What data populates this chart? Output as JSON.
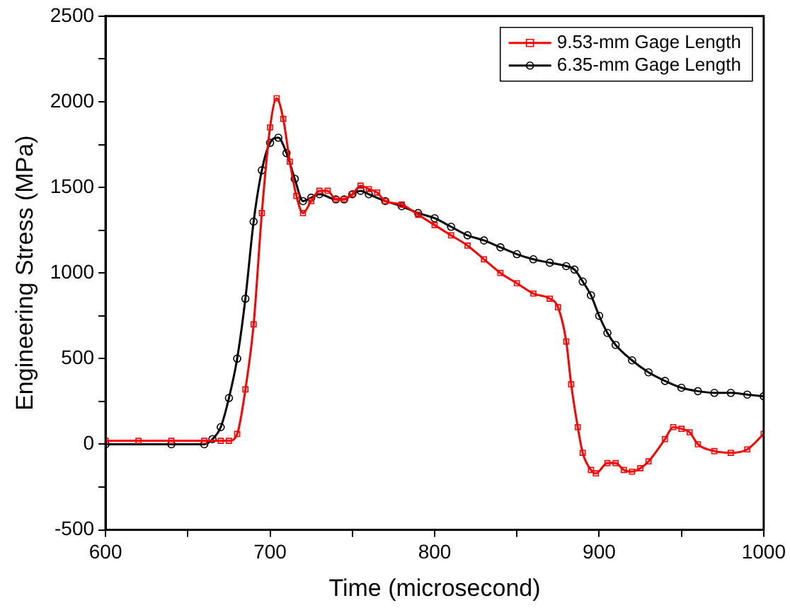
{
  "chart_data": {
    "type": "line",
    "xlabel": "Time (microsecond)",
    "ylabel": "Engineering Stress (MPa)",
    "xlim": [
      600,
      1000
    ],
    "ylim": [
      -500,
      2500
    ],
    "xticks": [
      600,
      {
        "value": 650,
        "label": null
      },
      700,
      {
        "value": 750,
        "label": null
      },
      800,
      {
        "value": 850,
        "label": null
      },
      900,
      {
        "value": 950,
        "label": null
      },
      1000
    ],
    "yticks": [
      -500,
      {
        "value": -250,
        "label": null
      },
      0,
      {
        "value": 250,
        "label": null
      },
      500,
      {
        "value": 750,
        "label": null
      },
      1000,
      {
        "value": 1250,
        "label": null
      },
      1500,
      {
        "value": 1750,
        "label": null
      },
      2000,
      {
        "value": 2250,
        "label": null
      },
      2500
    ],
    "grid": false,
    "legend": "top right",
    "line_style": "solid",
    "series": [
      {
        "name": "9.53-mm Gage Length",
        "color": "#ff0000",
        "marker": "square",
        "x": [
          600,
          620,
          640,
          660,
          670,
          675,
          680,
          685,
          690,
          695,
          700,
          704,
          708,
          712,
          716,
          720,
          725,
          730,
          735,
          740,
          745,
          750,
          755,
          760,
          765,
          770,
          780,
          790,
          800,
          810,
          820,
          830,
          840,
          850,
          860,
          870,
          875,
          880,
          883,
          887,
          890,
          895,
          898,
          905,
          910,
          915,
          920,
          925,
          930,
          940,
          945,
          950,
          955,
          960,
          970,
          980,
          990,
          1000
        ],
        "values": [
          20,
          20,
          20,
          20,
          20,
          20,
          60,
          320,
          700,
          1350,
          1850,
          2020,
          1900,
          1650,
          1450,
          1350,
          1420,
          1480,
          1480,
          1430,
          1430,
          1460,
          1510,
          1490,
          1470,
          1420,
          1400,
          1340,
          1280,
          1220,
          1160,
          1080,
          1000,
          940,
          880,
          850,
          800,
          600,
          350,
          100,
          -50,
          -150,
          -170,
          -110,
          -110,
          -150,
          -160,
          -140,
          -100,
          30,
          100,
          90,
          70,
          0,
          -40,
          -50,
          -30,
          60
        ]
      },
      {
        "name": "6.35-mm Gage Length",
        "color": "#000000",
        "marker": "circle",
        "x": [
          600,
          640,
          660,
          665,
          670,
          675,
          680,
          685,
          690,
          695,
          700,
          705,
          710,
          715,
          720,
          725,
          730,
          740,
          745,
          750,
          755,
          760,
          770,
          780,
          790,
          800,
          810,
          820,
          830,
          840,
          850,
          860,
          870,
          880,
          885,
          890,
          895,
          900,
          905,
          910,
          920,
          930,
          940,
          950,
          960,
          970,
          980,
          990,
          1000
        ],
        "values": [
          0,
          0,
          0,
          30,
          100,
          270,
          500,
          850,
          1300,
          1600,
          1760,
          1790,
          1700,
          1550,
          1420,
          1440,
          1460,
          1430,
          1430,
          1460,
          1480,
          1460,
          1420,
          1390,
          1350,
          1320,
          1270,
          1220,
          1190,
          1150,
          1110,
          1080,
          1060,
          1040,
          1020,
          950,
          870,
          750,
          650,
          580,
          490,
          420,
          370,
          330,
          310,
          300,
          300,
          290,
          280
        ]
      }
    ]
  }
}
